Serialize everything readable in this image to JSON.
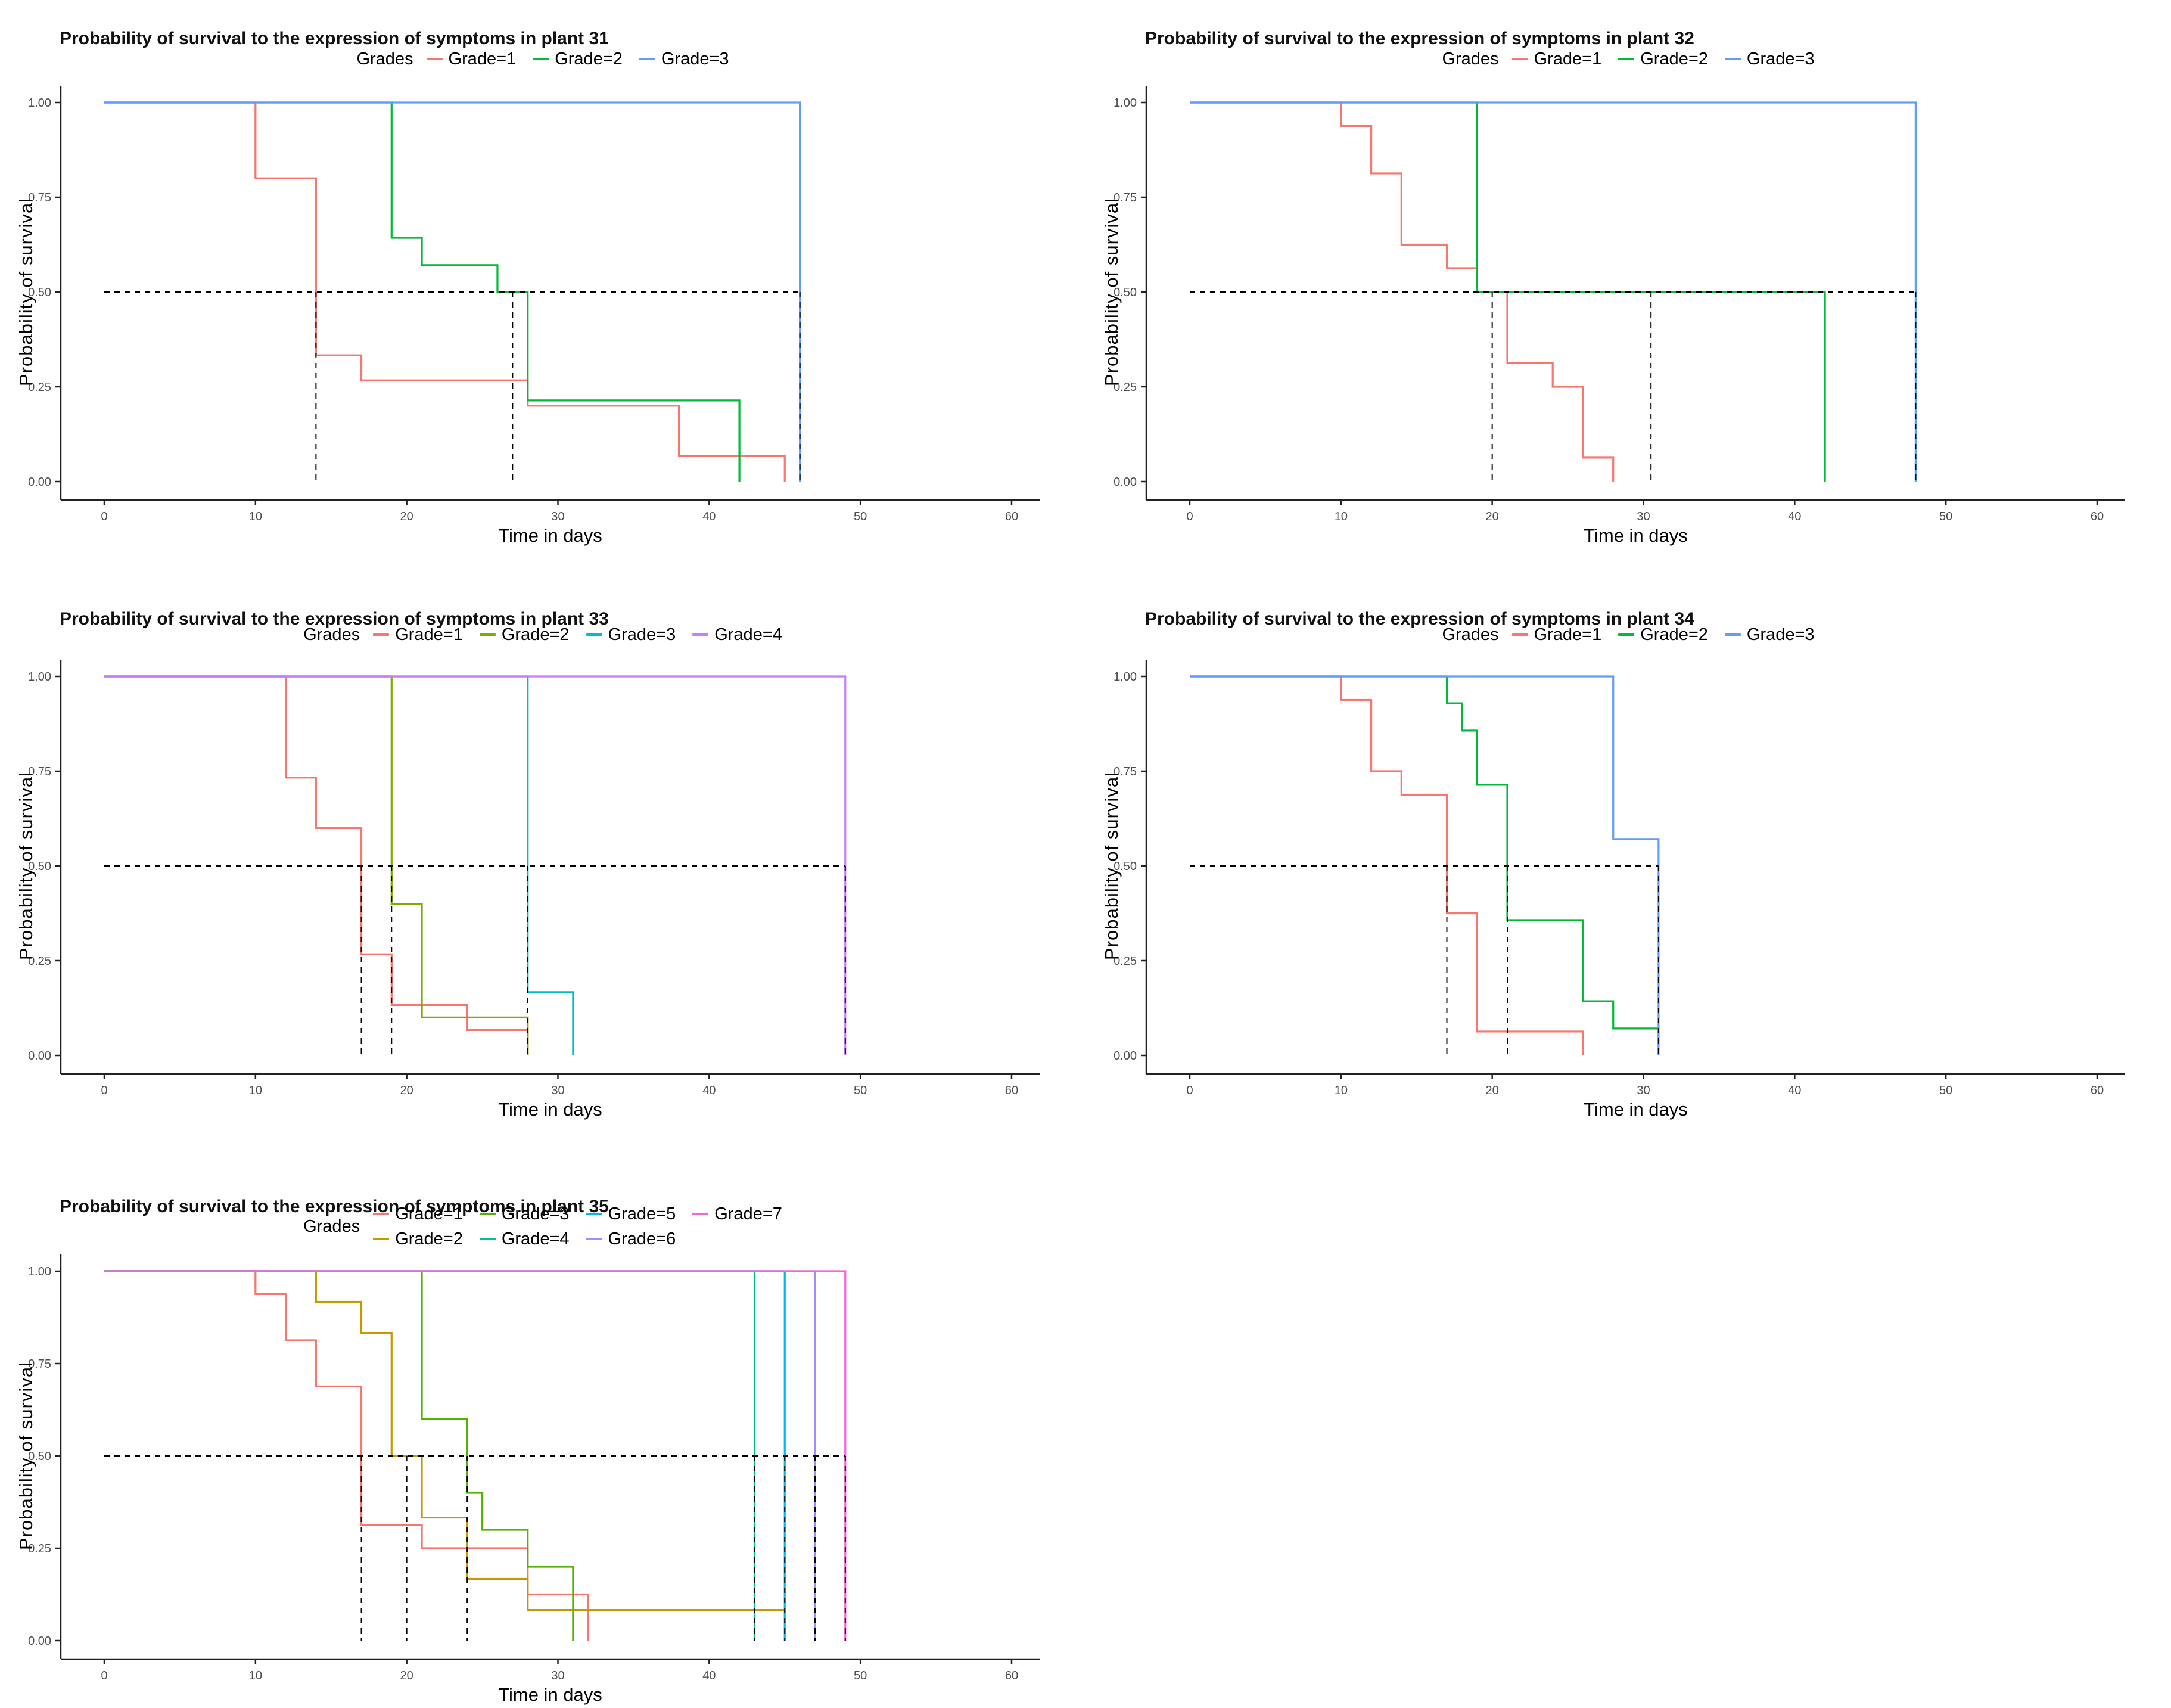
{
  "page_background": "#ffffff",
  "axis_color": "#222222",
  "median_line_color": "#000000",
  "tick_label_color": "#4d4d4d",
  "chart_data": [
    {
      "type": "step",
      "title": "Probability of survival to the expression of symptoms in plant 31",
      "xlabel": "Time in days",
      "ylabel": "Probability of survival",
      "legend_title": "Grades",
      "legend_position": "top",
      "legend_rows": 1,
      "xlim": [
        0,
        63
      ],
      "ylim": [
        0,
        1
      ],
      "x_ticks": [
        0,
        10,
        20,
        30,
        40,
        50,
        60
      ],
      "y_ticks": [
        0,
        0.25,
        0.5,
        0.75,
        1
      ],
      "y_tick_labels": [
        "0.00",
        "0.25",
        "0.50",
        "0.75",
        "1.00"
      ],
      "grid": false,
      "median_reference_y": 0.5,
      "median_h_line_end_x": 46,
      "median_times": [
        14,
        27,
        46
      ],
      "series": [
        {
          "name": "Grade=1",
          "color": "#F8766D",
          "start": [
            0,
            1.0
          ],
          "steps": [
            [
              10,
              0.8
            ],
            [
              14,
              0.333
            ],
            [
              17,
              0.267
            ],
            [
              28,
              0.2
            ],
            [
              38,
              0.067
            ],
            [
              45,
              0
            ]
          ]
        },
        {
          "name": "Grade=2",
          "color": "#00BA38",
          "start": [
            0,
            1.0
          ],
          "steps": [
            [
              19,
              0.643
            ],
            [
              21,
              0.571
            ],
            [
              26,
              0.5
            ],
            [
              28,
              0.214
            ],
            [
              42,
              0
            ]
          ]
        },
        {
          "name": "Grade=3",
          "color": "#619CFF",
          "start": [
            0,
            1.0
          ],
          "steps": [
            [
              46,
              0
            ]
          ]
        }
      ]
    },
    {
      "type": "step",
      "title": "Probability of survival to the expression of symptoms in plant 32",
      "xlabel": "Time in days",
      "ylabel": "Probability of survival",
      "legend_title": "Grades",
      "legend_position": "top",
      "legend_rows": 1,
      "xlim": [
        0,
        63
      ],
      "ylim": [
        0,
        1
      ],
      "x_ticks": [
        0,
        10,
        20,
        30,
        40,
        50,
        60
      ],
      "y_ticks": [
        0,
        0.25,
        0.5,
        0.75,
        1
      ],
      "y_tick_labels": [
        "0.00",
        "0.25",
        "0.50",
        "0.75",
        "1.00"
      ],
      "grid": false,
      "median_reference_y": 0.5,
      "median_h_line_end_x": 48,
      "median_times": [
        20,
        30.5,
        48
      ],
      "series": [
        {
          "name": "Grade=1",
          "color": "#F8766D",
          "start": [
            0,
            1.0
          ],
          "steps": [
            [
              10,
              0.938
            ],
            [
              12,
              0.813
            ],
            [
              14,
              0.625
            ],
            [
              17,
              0.563
            ],
            [
              19,
              0.5
            ],
            [
              21,
              0.313
            ],
            [
              24,
              0.25
            ],
            [
              26,
              0.063
            ],
            [
              28,
              0
            ]
          ]
        },
        {
          "name": "Grade=2",
          "color": "#00BA38",
          "start": [
            0,
            1.0
          ],
          "steps": [
            [
              19,
              0.5
            ],
            [
              42,
              0
            ]
          ]
        },
        {
          "name": "Grade=3",
          "color": "#619CFF",
          "start": [
            0,
            1.0
          ],
          "steps": [
            [
              48,
              0
            ]
          ]
        }
      ]
    },
    {
      "type": "step",
      "title": "Probability of survival to the expression of symptoms in plant 33",
      "xlabel": "Time in days",
      "ylabel": "Probability of survival",
      "legend_title": "Grades",
      "legend_position": "top",
      "legend_rows": 1,
      "xlim": [
        0,
        63
      ],
      "ylim": [
        0,
        1
      ],
      "x_ticks": [
        0,
        10,
        20,
        30,
        40,
        50,
        60
      ],
      "y_ticks": [
        0,
        0.25,
        0.5,
        0.75,
        1
      ],
      "y_tick_labels": [
        "0.00",
        "0.25",
        "0.50",
        "0.75",
        "1.00"
      ],
      "grid": false,
      "median_reference_y": 0.5,
      "median_h_line_end_x": 49,
      "median_times": [
        17,
        19,
        28,
        49
      ],
      "series": [
        {
          "name": "Grade=1",
          "color": "#F8766D",
          "start": [
            0,
            1.0
          ],
          "steps": [
            [
              12,
              0.733
            ],
            [
              14,
              0.6
            ],
            [
              17,
              0.267
            ],
            [
              19,
              0.133
            ],
            [
              24,
              0.067
            ],
            [
              28,
              0
            ]
          ]
        },
        {
          "name": "Grade=2",
          "color": "#7CAE00",
          "start": [
            0,
            1.0
          ],
          "steps": [
            [
              19,
              0.4
            ],
            [
              21,
              0.1
            ],
            [
              28,
              0
            ]
          ]
        },
        {
          "name": "Grade=3",
          "color": "#00BFC4",
          "start": [
            0,
            1.0
          ],
          "steps": [
            [
              28,
              0.167
            ],
            [
              31,
              0
            ]
          ]
        },
        {
          "name": "Grade=4",
          "color": "#C77CFF",
          "start": [
            0,
            1.0
          ],
          "steps": [
            [
              49,
              0
            ]
          ]
        }
      ]
    },
    {
      "type": "step",
      "title": "Probability of survival to the expression of symptoms in plant 34",
      "xlabel": "Time in days",
      "ylabel": "Probability of survival",
      "legend_title": "Grades",
      "legend_position": "top",
      "legend_rows": 1,
      "xlim": [
        0,
        63
      ],
      "ylim": [
        0,
        1
      ],
      "x_ticks": [
        0,
        10,
        20,
        30,
        40,
        50,
        60
      ],
      "y_ticks": [
        0,
        0.25,
        0.5,
        0.75,
        1
      ],
      "y_tick_labels": [
        "0.00",
        "0.25",
        "0.50",
        "0.75",
        "1.00"
      ],
      "grid": false,
      "median_reference_y": 0.5,
      "median_h_line_end_x": 31,
      "median_times": [
        17,
        21,
        31
      ],
      "series": [
        {
          "name": "Grade=1",
          "color": "#F8766D",
          "start": [
            0,
            1.0
          ],
          "steps": [
            [
              10,
              0.938
            ],
            [
              12,
              0.75
            ],
            [
              14,
              0.688
            ],
            [
              17,
              0.375
            ],
            [
              19,
              0.063
            ],
            [
              26,
              0
            ]
          ]
        },
        {
          "name": "Grade=2",
          "color": "#00BA38",
          "start": [
            0,
            1.0
          ],
          "steps": [
            [
              17,
              0.929
            ],
            [
              18,
              0.857
            ],
            [
              19,
              0.714
            ],
            [
              21,
              0.357
            ],
            [
              26,
              0.143
            ],
            [
              28,
              0.071
            ],
            [
              31,
              0
            ]
          ]
        },
        {
          "name": "Grade=3",
          "color": "#619CFF",
          "start": [
            0,
            1.0
          ],
          "steps": [
            [
              28,
              0.571
            ],
            [
              31,
              0
            ]
          ]
        }
      ]
    },
    {
      "type": "step",
      "title": "Probability of survival to the expression of symptoms in plant 35",
      "xlabel": "Time in days",
      "ylabel": "Probability of survival",
      "legend_title": "Grades",
      "legend_position": "top",
      "legend_rows": 2,
      "xlim": [
        0,
        63
      ],
      "ylim": [
        0,
        1
      ],
      "x_ticks": [
        0,
        10,
        20,
        30,
        40,
        50,
        60
      ],
      "y_ticks": [
        0,
        0.25,
        0.5,
        0.75,
        1
      ],
      "y_tick_labels": [
        "0.00",
        "0.25",
        "0.50",
        "0.75",
        "1.00"
      ],
      "grid": false,
      "median_reference_y": 0.5,
      "median_h_line_end_x": 49,
      "median_times": [
        17,
        20,
        24,
        43,
        45,
        47,
        49
      ],
      "series": [
        {
          "name": "Grade=1",
          "color": "#F8766D",
          "start": [
            0,
            1.0
          ],
          "steps": [
            [
              10,
              0.938
            ],
            [
              12,
              0.813
            ],
            [
              14,
              0.688
            ],
            [
              17,
              0.313
            ],
            [
              21,
              0.25
            ],
            [
              28,
              0.125
            ],
            [
              32,
              0
            ]
          ]
        },
        {
          "name": "Grade=2",
          "color": "#C49A00",
          "start": [
            0,
            1.0
          ],
          "steps": [
            [
              14,
              0.917
            ],
            [
              17,
              0.833
            ],
            [
              19,
              0.5
            ],
            [
              21,
              0.333
            ],
            [
              24,
              0.167
            ],
            [
              28,
              0.083
            ]
          ],
          "end_x": 45
        },
        {
          "name": "Grade=3",
          "color": "#53B400",
          "start": [
            0,
            1.0
          ],
          "steps": [
            [
              21,
              0.6
            ],
            [
              24,
              0.4
            ],
            [
              25,
              0.3
            ],
            [
              28,
              0.2
            ],
            [
              31,
              0
            ]
          ]
        },
        {
          "name": "Grade=4",
          "color": "#00C094",
          "start": [
            0,
            1.0
          ],
          "steps": [
            [
              43,
              0
            ]
          ]
        },
        {
          "name": "Grade=5",
          "color": "#00B6EB",
          "start": [
            0,
            1.0
          ],
          "steps": [
            [
              45,
              0
            ]
          ]
        },
        {
          "name": "Grade=6",
          "color": "#A58AFF",
          "start": [
            0,
            1.0
          ],
          "steps": [
            [
              47,
              0
            ]
          ]
        },
        {
          "name": "Grade=7",
          "color": "#FB61D7",
          "start": [
            0,
            1.0
          ],
          "steps": [
            [
              49,
              0
            ]
          ]
        }
      ]
    }
  ]
}
